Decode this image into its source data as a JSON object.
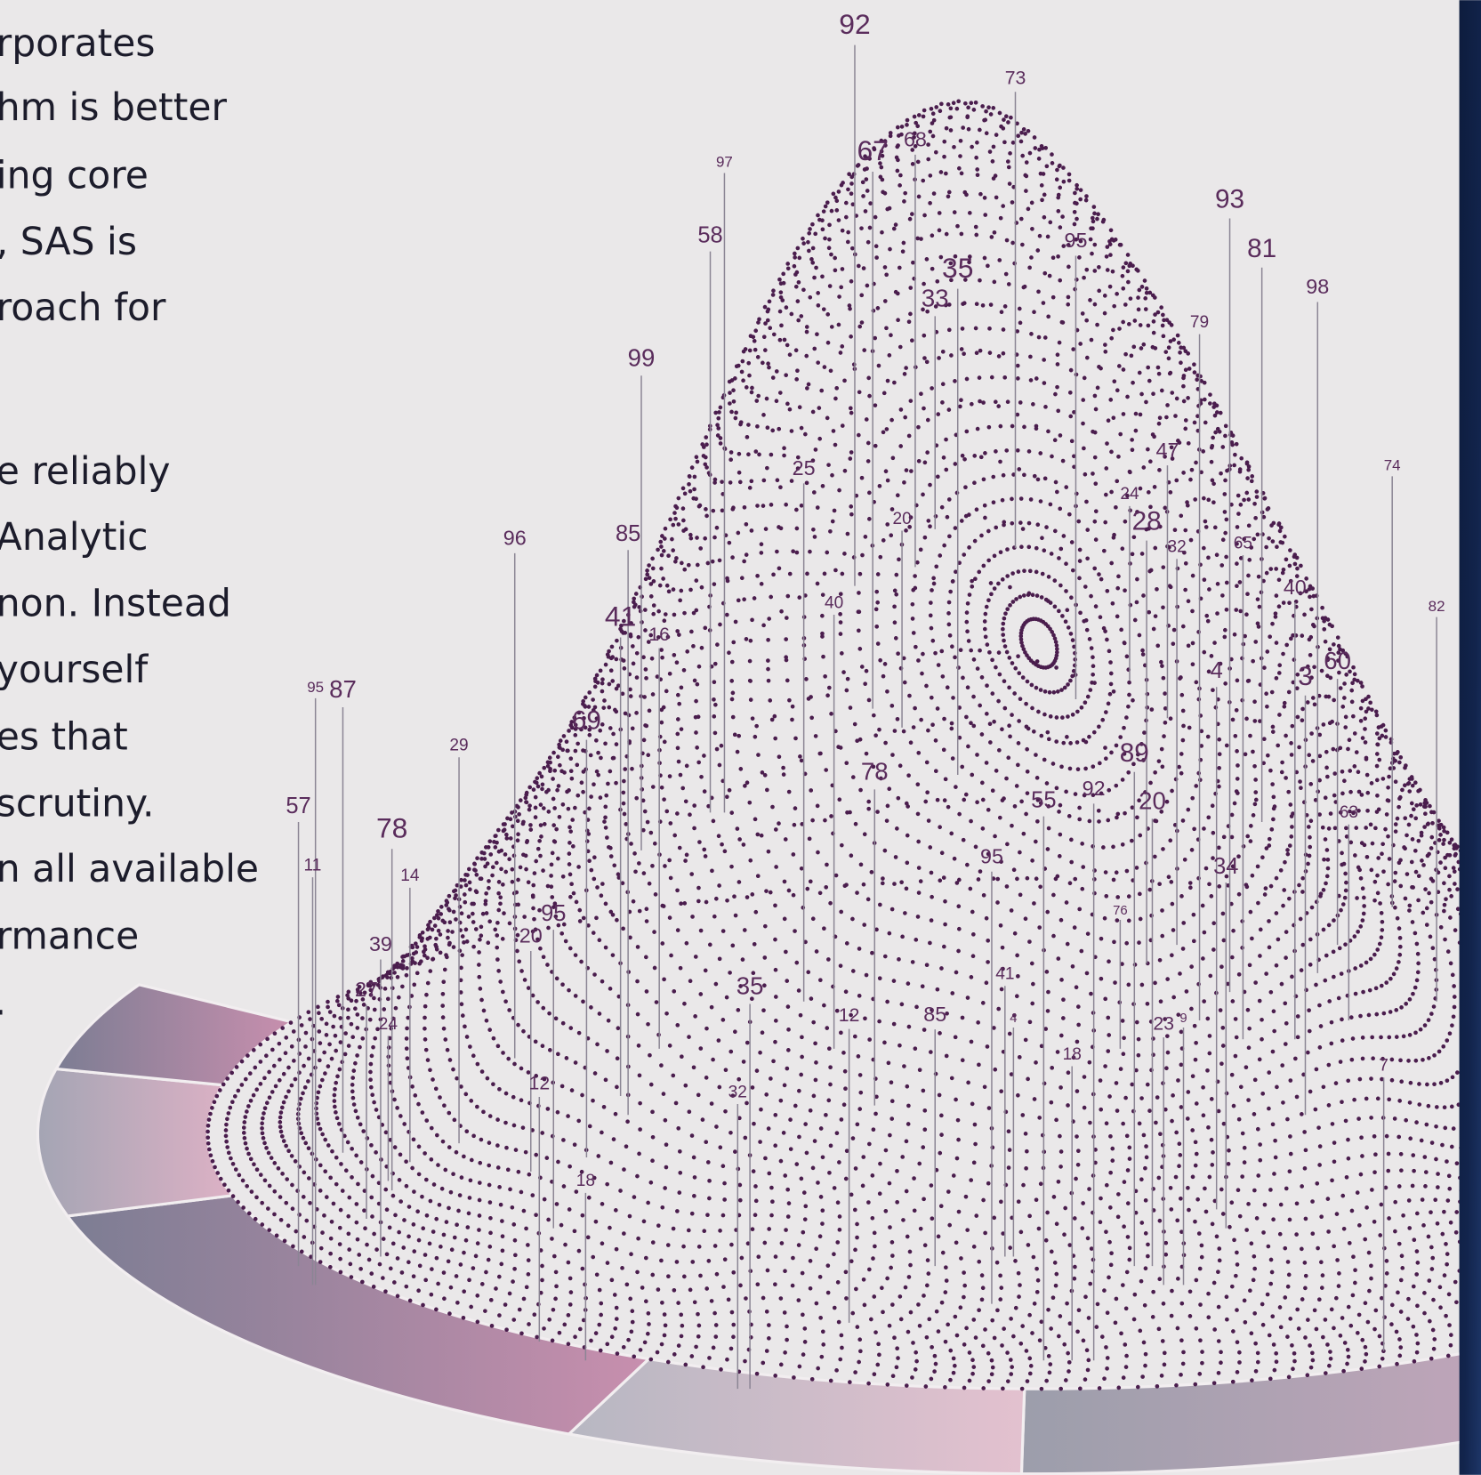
{
  "text_lines": [
    "rporates",
    "hm is better",
    "ing core",
    ", SAS is",
    "roach for",
    "e reliably",
    "Analytic",
    "non. Instead",
    "yourself",
    "es that",
    "scrutiny.",
    "n all available",
    "rmance",
    "."
  ],
  "pins": [
    92,
    73,
    97,
    67,
    68,
    58,
    35,
    33,
    95,
    93,
    81,
    98,
    79,
    99,
    25,
    20,
    74,
    47,
    24,
    28,
    32,
    65,
    96,
    85,
    40,
    41,
    16,
    40,
    82,
    4,
    3,
    60,
    95,
    87,
    29,
    69,
    78,
    89,
    57,
    55,
    92,
    20,
    63,
    78,
    11,
    14,
    95,
    34,
    95,
    20,
    39,
    76,
    27,
    41,
    35,
    24,
    12,
    85,
    4,
    23,
    9,
    18,
    7,
    12,
    32,
    18
  ]
}
